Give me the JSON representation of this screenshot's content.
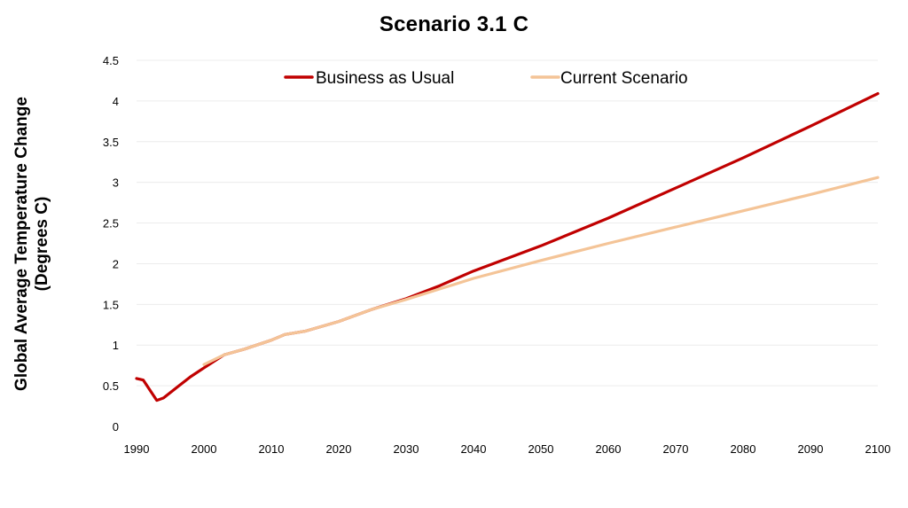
{
  "chart_data": {
    "type": "line",
    "title": "Scenario 3.1 C",
    "ylabel_lines": [
      "Global Average Temperature Change",
      "(Degrees C)"
    ],
    "xlabel": "",
    "xlim": [
      1990,
      2100
    ],
    "ylim": [
      0,
      4.5
    ],
    "x_ticks": [
      "1990",
      "2000",
      "2010",
      "2020",
      "2030",
      "2040",
      "2050",
      "2060",
      "2070",
      "2080",
      "2090",
      "2100"
    ],
    "y_ticks": [
      "0",
      "0.5",
      "1",
      "1.5",
      "2",
      "2.5",
      "3",
      "3.5",
      "4",
      "4.5"
    ],
    "grid": "horizontal",
    "legend_position": "top",
    "series": [
      {
        "name": "Business as Usual",
        "color": "#c00000",
        "points": [
          [
            1990,
            0.59
          ],
          [
            1991,
            0.57
          ],
          [
            1993,
            0.32
          ],
          [
            1994,
            0.35
          ],
          [
            1996,
            0.48
          ],
          [
            1998,
            0.61
          ],
          [
            2000,
            0.72
          ],
          [
            2003,
            0.88
          ],
          [
            2006,
            0.95
          ],
          [
            2010,
            1.06
          ],
          [
            2012,
            1.13
          ],
          [
            2015,
            1.17
          ],
          [
            2020,
            1.29
          ],
          [
            2025,
            1.44
          ],
          [
            2030,
            1.57
          ],
          [
            2035,
            1.73
          ],
          [
            2040,
            1.91
          ],
          [
            2050,
            2.22
          ],
          [
            2060,
            2.56
          ],
          [
            2070,
            2.93
          ],
          [
            2080,
            3.3
          ],
          [
            2090,
            3.69
          ],
          [
            2100,
            4.09
          ]
        ]
      },
      {
        "name": "Current Scenario",
        "color": "#f4c497",
        "points": [
          [
            2000,
            0.76
          ],
          [
            2003,
            0.88
          ],
          [
            2006,
            0.95
          ],
          [
            2010,
            1.06
          ],
          [
            2012,
            1.13
          ],
          [
            2015,
            1.17
          ],
          [
            2020,
            1.29
          ],
          [
            2025,
            1.44
          ],
          [
            2030,
            1.56
          ],
          [
            2035,
            1.69
          ],
          [
            2040,
            1.82
          ],
          [
            2050,
            2.04
          ],
          [
            2060,
            2.25
          ],
          [
            2070,
            2.45
          ],
          [
            2080,
            2.65
          ],
          [
            2090,
            2.85
          ],
          [
            2100,
            3.06
          ]
        ]
      }
    ]
  }
}
